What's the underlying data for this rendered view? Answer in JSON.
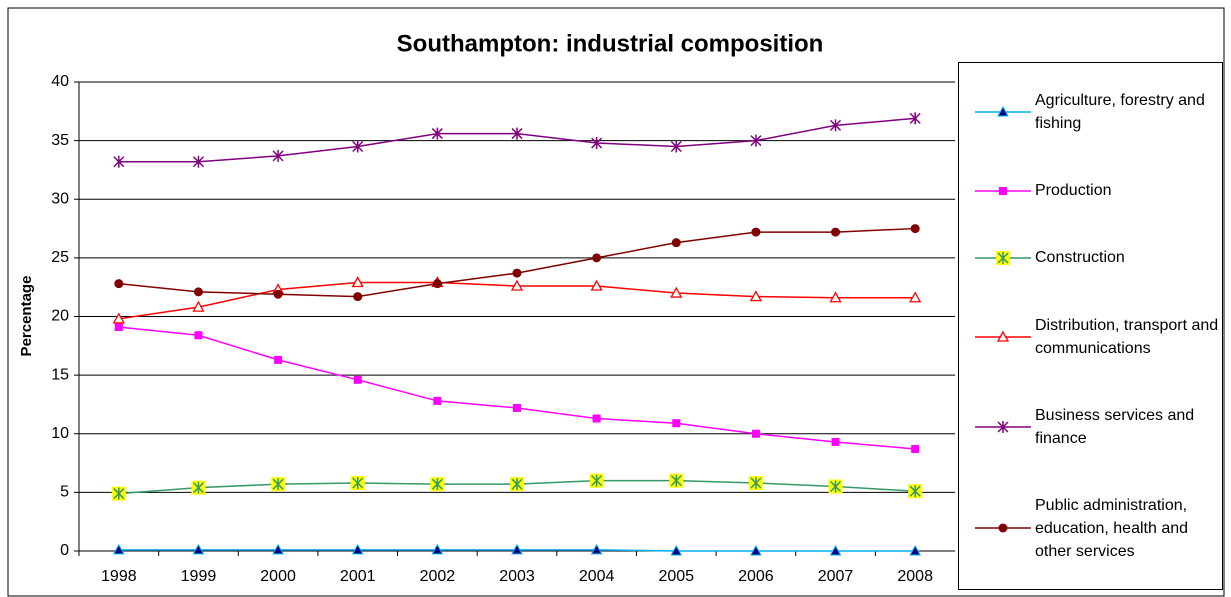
{
  "chart_data": {
    "type": "line",
    "title": "Southampton: industrial composition",
    "y_label": "Percentage",
    "categories": [
      "1998",
      "1999",
      "2000",
      "2001",
      "2002",
      "2003",
      "2004",
      "2005",
      "2006",
      "2007",
      "2008"
    ],
    "ylim": [
      0,
      40
    ],
    "yticks": [
      0,
      5,
      10,
      15,
      20,
      25,
      30,
      35,
      40
    ],
    "grid": true,
    "legend": "right",
    "series": [
      {
        "name": "Agriculture, forestry and fishing",
        "color": "#00b0f0",
        "marker": "triangle",
        "values": [
          0.1,
          0.1,
          0.1,
          0.1,
          0.1,
          0.1,
          0.1,
          0,
          0,
          0,
          0
        ]
      },
      {
        "name": "Production",
        "color": "#ff00ff",
        "marker": "square",
        "values": [
          19.1,
          18.4,
          16.3,
          14.6,
          12.8,
          12.2,
          11.3,
          10.9,
          10.0,
          9.3,
          8.7
        ]
      },
      {
        "name": "Construction",
        "color": "#339966",
        "marker": "asterisk-box",
        "values": [
          4.9,
          5.4,
          5.7,
          5.8,
          5.7,
          5.7,
          6.0,
          6.0,
          5.8,
          5.5,
          5.1
        ]
      },
      {
        "name": "Distribution, transport and communications",
        "color": "#ff0000",
        "marker": "open-triangle",
        "values": [
          19.8,
          20.8,
          22.3,
          22.9,
          22.9,
          22.6,
          22.6,
          22.0,
          21.7,
          21.6,
          21.6
        ]
      },
      {
        "name": "Business services and finance",
        "color": "#800080",
        "marker": "star",
        "values": [
          33.2,
          33.2,
          33.7,
          34.5,
          35.6,
          35.6,
          34.8,
          34.5,
          35.0,
          36.3,
          36.9
        ]
      },
      {
        "name": "Public administration, education, health and other services",
        "color": "#800000",
        "marker": "circle",
        "values": [
          22.8,
          22.1,
          21.9,
          21.7,
          22.8,
          23.7,
          25.0,
          26.3,
          27.2,
          27.2,
          27.5
        ]
      }
    ]
  }
}
